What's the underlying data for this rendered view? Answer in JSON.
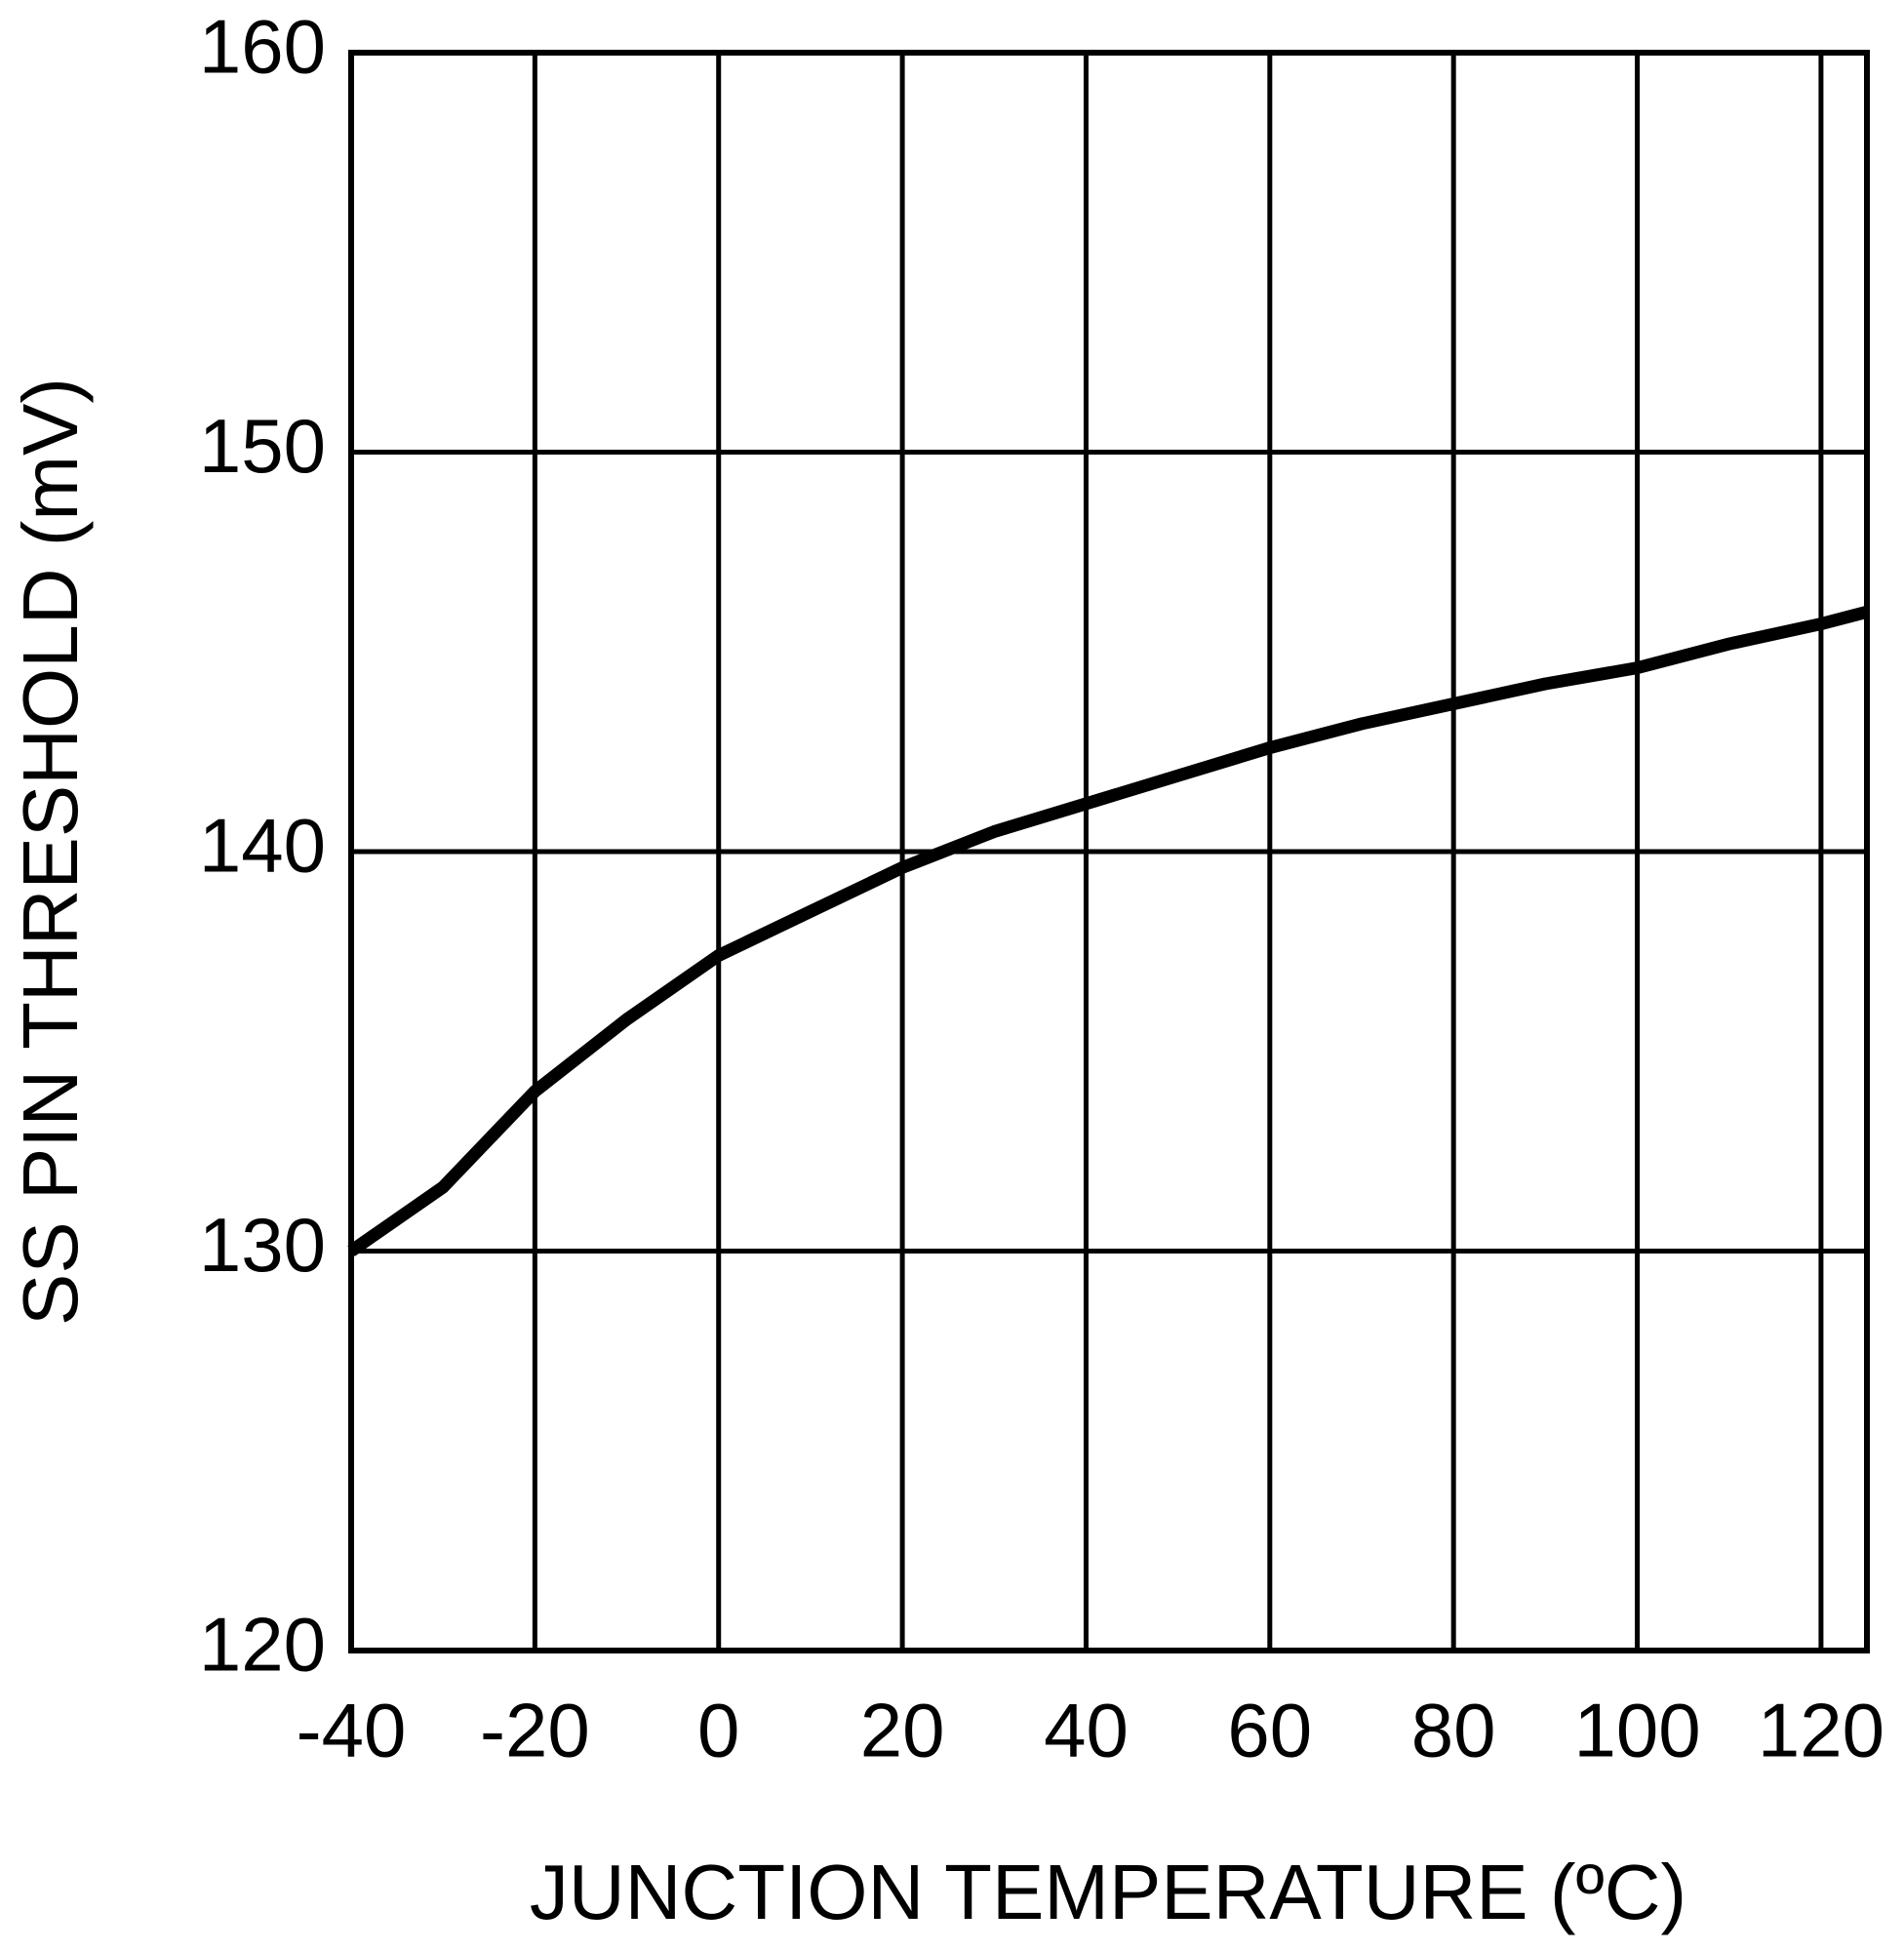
{
  "chart_data": {
    "type": "line",
    "xlabel": "JUNCTION TEMPERATURE (ºC)",
    "ylabel": "SS PIN THRESHOLD (mV)",
    "x": [
      -40,
      -30,
      -20,
      -10,
      0,
      10,
      20,
      30,
      40,
      50,
      60,
      70,
      80,
      90,
      100,
      110,
      120,
      125
    ],
    "series": [
      {
        "color": "#000000",
        "values": [
          130,
          131.6,
          134,
          135.8,
          137.4,
          138.5,
          139.6,
          140.5,
          141.2,
          141.9,
          142.6,
          143.2,
          143.7,
          144.2,
          144.6,
          145.2,
          145.7,
          146
        ]
      }
    ],
    "xlim": [
      -40,
      125
    ],
    "xticks": [
      -40,
      -20,
      0,
      20,
      40,
      60,
      80,
      100,
      120
    ],
    "ylim": [
      120,
      160
    ],
    "yticks": [
      120,
      130,
      140,
      150,
      160
    ],
    "grid": true
  }
}
